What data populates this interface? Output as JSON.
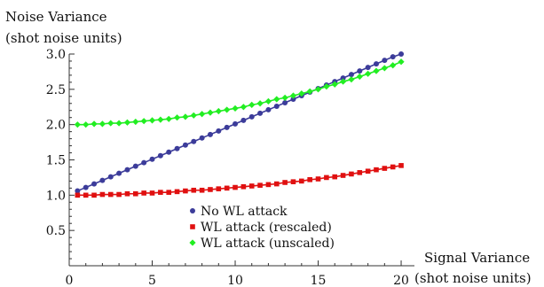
{
  "chart_data": {
    "type": "line",
    "ylabel_line1": "Noise Variance",
    "ylabel_line2": "(shot noise units)",
    "xlabel_line1": "Signal Variance",
    "xlabel_line2": "(shot noise units)",
    "xlim": [
      0,
      20.8
    ],
    "ylim": [
      0,
      3.0
    ],
    "x_ticks": [
      0,
      5,
      10,
      15,
      20
    ],
    "x_tick_labels": [
      "0",
      "5",
      "10",
      "15",
      "20"
    ],
    "y_ticks": [
      0.5,
      1.0,
      1.5,
      2.0,
      2.5,
      3.0
    ],
    "y_tick_labels": [
      "0.5",
      "1.0",
      "1.5",
      "2.0",
      "2.5",
      "3.0"
    ],
    "grid": false,
    "legend_position": "bottom-center",
    "x": [
      0.5,
      1.0,
      1.5,
      2.0,
      2.5,
      3.0,
      3.5,
      4.0,
      4.5,
      5.0,
      5.5,
      6.0,
      6.5,
      7.0,
      7.5,
      8.0,
      8.5,
      9.0,
      9.5,
      10.0,
      10.5,
      11.0,
      11.5,
      12.0,
      12.5,
      13.0,
      13.5,
      14.0,
      14.5,
      15.0,
      15.5,
      16.0,
      16.5,
      17.0,
      17.5,
      18.0,
      18.5,
      19.0,
      19.5,
      20.0
    ],
    "series": [
      {
        "name": "No WL attack",
        "color": "#3c3c9a",
        "marker": "circle",
        "values": [
          1.06,
          1.11,
          1.16,
          1.21,
          1.26,
          1.31,
          1.36,
          1.41,
          1.46,
          1.51,
          1.56,
          1.61,
          1.66,
          1.71,
          1.76,
          1.81,
          1.86,
          1.91,
          1.96,
          2.01,
          2.06,
          2.11,
          2.16,
          2.21,
          2.26,
          2.31,
          2.36,
          2.41,
          2.46,
          2.51,
          2.56,
          2.61,
          2.66,
          2.71,
          2.76,
          2.81,
          2.86,
          2.91,
          2.96,
          3.0
        ]
      },
      {
        "name": "WL attack (rescaled)",
        "color": "#e01010",
        "marker": "square",
        "values": [
          1.0,
          1.0,
          1.0,
          1.01,
          1.01,
          1.01,
          1.02,
          1.02,
          1.03,
          1.03,
          1.04,
          1.04,
          1.05,
          1.06,
          1.07,
          1.07,
          1.08,
          1.09,
          1.1,
          1.11,
          1.12,
          1.13,
          1.14,
          1.15,
          1.16,
          1.18,
          1.19,
          1.2,
          1.22,
          1.23,
          1.25,
          1.26,
          1.28,
          1.3,
          1.32,
          1.34,
          1.36,
          1.38,
          1.4,
          1.42
        ]
      },
      {
        "name": "WL attack (unscaled)",
        "color": "#22ee22",
        "marker": "diamond",
        "values": [
          2.0,
          2.0,
          2.01,
          2.01,
          2.02,
          2.02,
          2.03,
          2.04,
          2.05,
          2.06,
          2.07,
          2.08,
          2.1,
          2.11,
          2.13,
          2.15,
          2.17,
          2.19,
          2.21,
          2.23,
          2.25,
          2.28,
          2.3,
          2.33,
          2.36,
          2.38,
          2.41,
          2.44,
          2.47,
          2.5,
          2.54,
          2.57,
          2.61,
          2.64,
          2.68,
          2.72,
          2.76,
          2.8,
          2.84,
          2.89
        ]
      }
    ]
  }
}
